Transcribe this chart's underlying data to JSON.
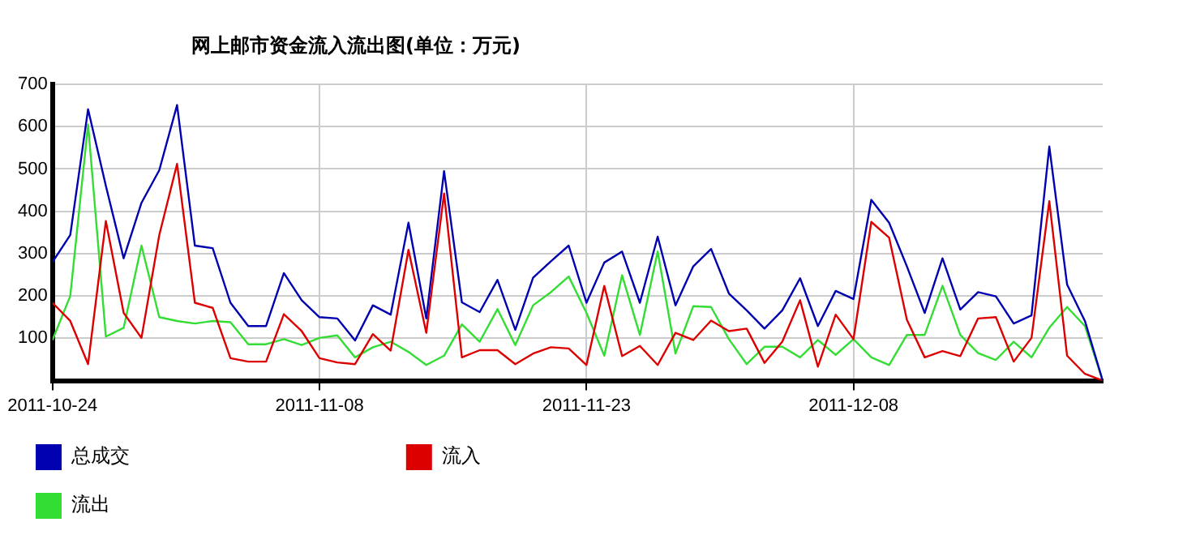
{
  "chart_data": {
    "type": "line",
    "title": "网上邮市资金流入流出图(单位：万元)",
    "x": [
      "2011-10-24",
      "2011-10-25",
      "2011-10-26",
      "2011-10-27",
      "2011-10-28",
      "2011-10-29",
      "2011-10-30",
      "2011-10-31",
      "2011-11-01",
      "2011-11-02",
      "2011-11-03",
      "2011-11-04",
      "2011-11-05",
      "2011-11-06",
      "2011-11-07",
      "2011-11-08",
      "2011-11-09",
      "2011-11-10",
      "2011-11-11",
      "2011-11-12",
      "2011-11-13",
      "2011-11-14",
      "2011-11-15",
      "2011-11-16",
      "2011-11-17",
      "2011-11-18",
      "2011-11-19",
      "2011-11-20",
      "2011-11-21",
      "2011-11-22",
      "2011-11-23",
      "2011-11-24",
      "2011-11-25",
      "2011-11-26",
      "2011-11-27",
      "2011-11-28",
      "2011-11-29",
      "2011-11-30",
      "2011-12-01",
      "2011-12-02",
      "2011-12-03",
      "2011-12-04",
      "2011-12-05",
      "2011-12-06",
      "2011-12-07",
      "2011-12-08",
      "2011-12-09",
      "2011-12-10",
      "2011-12-11",
      "2011-12-12",
      "2011-12-13",
      "2011-12-14",
      "2011-12-15",
      "2011-12-16",
      "2011-12-17",
      "2011-12-18",
      "2011-12-19",
      "2011-12-20",
      "2011-12-21",
      "2011-12-22"
    ],
    "series": [
      {
        "name": "总成交",
        "color": "#0000b0",
        "values": [
          280,
          344,
          641,
          460,
          289,
          420,
          497,
          651,
          319,
          313,
          184,
          129,
          129,
          254,
          190,
          150,
          147,
          95,
          178,
          156,
          373,
          147,
          495,
          185,
          162,
          238,
          120,
          243,
          282,
          319,
          184,
          279,
          305,
          184,
          340,
          178,
          270,
          311,
          206,
          166,
          123,
          166,
          242,
          129,
          212,
          193,
          427,
          373,
          270,
          160,
          289,
          168,
          209,
          199,
          135,
          154,
          553,
          227,
          141,
          0
        ]
      },
      {
        "name": "流入",
        "color": "#dd0000",
        "values": [
          184,
          141,
          39,
          377,
          160,
          101,
          344,
          512,
          184,
          172,
          53,
          45,
          45,
          157,
          117,
          53,
          43,
          39,
          110,
          71,
          309,
          113,
          442,
          55,
          72,
          72,
          39,
          64,
          79,
          76,
          37,
          224,
          58,
          82,
          37,
          113,
          96,
          142,
          117,
          123,
          42,
          92,
          190,
          33,
          156,
          98,
          375,
          338,
          144,
          55,
          70,
          58,
          147,
          150,
          45,
          101,
          424,
          59,
          16,
          0
        ]
      },
      {
        "name": "流出",
        "color": "#33dd33",
        "values": [
          96,
          200,
          605,
          104,
          125,
          319,
          150,
          141,
          135,
          141,
          138,
          86,
          86,
          98,
          84,
          101,
          107,
          55,
          79,
          92,
          68,
          37,
          59,
          133,
          92,
          169,
          84,
          178,
          209,
          246,
          160,
          59,
          249,
          108,
          305,
          64,
          176,
          174,
          98,
          39,
          80,
          80,
          55,
          96,
          61,
          98,
          55,
          37,
          108,
          108,
          224,
          108,
          65,
          49,
          92,
          55,
          125,
          174,
          129,
          0
        ]
      }
    ],
    "xlim": [
      "2011-10-24",
      "2011-12-22"
    ],
    "xticks": [
      "2011-10-24",
      "2011-11-08",
      "2011-11-23",
      "2011-12-08"
    ],
    "ylim": [
      0,
      700
    ],
    "yticks": [
      100,
      200,
      300,
      400,
      500,
      600,
      700
    ],
    "grid": true,
    "legend": "bottom",
    "marker": "none",
    "line_style": "solid"
  }
}
